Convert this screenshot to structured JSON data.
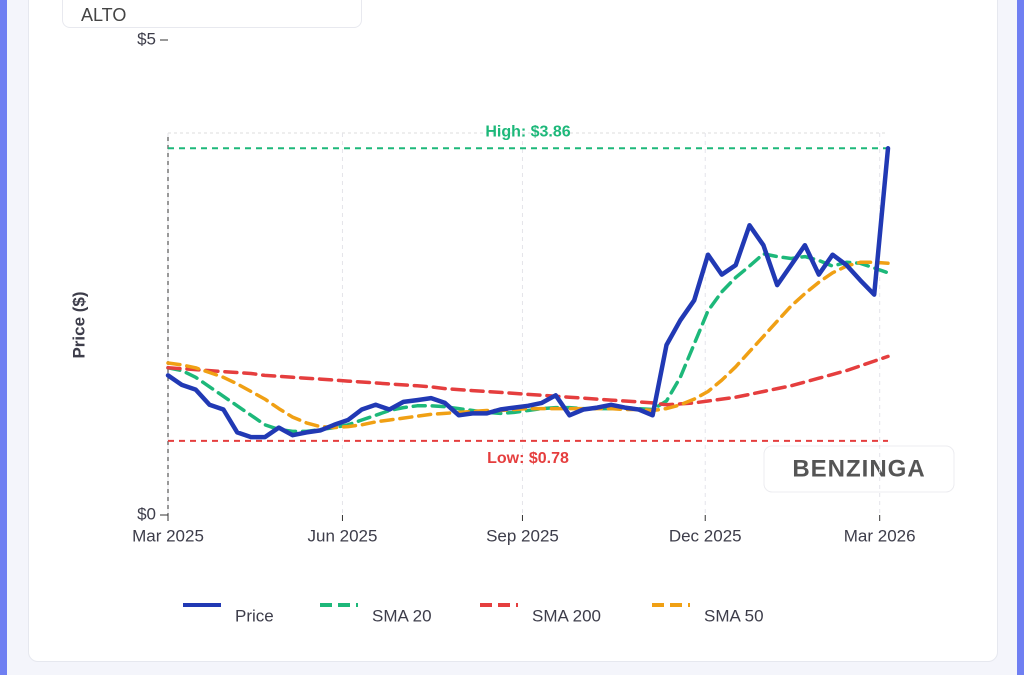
{
  "header": {
    "ticker": "ALTO"
  },
  "chart_data": {
    "type": "line",
    "y_label": "Price ($)",
    "watermark": "BENZINGA",
    "xlim": [
      0,
      52
    ],
    "xticks": [
      {
        "value": 0,
        "label": "Mar 2025"
      },
      {
        "value": 12.6,
        "label": "Jun 2025"
      },
      {
        "value": 25.6,
        "label": "Sep 2025"
      },
      {
        "value": 38.8,
        "label": "Dec 2025"
      },
      {
        "value": 51.4,
        "label": "Mar 2026"
      }
    ],
    "ylim": [
      0,
      5
    ],
    "yticks": [
      {
        "value": 0,
        "label": "$0"
      },
      {
        "value": 5,
        "label": "$5"
      }
    ],
    "grid": true,
    "legend": "bottom",
    "annotations": [
      {
        "label": "High: $3.86",
        "value": 3.86,
        "color": "#1db87a"
      },
      {
        "label": "Low: $0.78",
        "value": 0.78,
        "color": "#e53e3e"
      }
    ],
    "series": [
      {
        "name": "Price",
        "color": "#2139b4",
        "dashed": false,
        "values": [
          1.47,
          1.37,
          1.32,
          1.16,
          1.11,
          0.87,
          0.82,
          0.82,
          0.92,
          0.84,
          0.87,
          0.89,
          0.95,
          1.0,
          1.11,
          1.16,
          1.11,
          1.19,
          1.21,
          1.23,
          1.18,
          1.05,
          1.07,
          1.07,
          1.11,
          1.13,
          1.15,
          1.18,
          1.26,
          1.05,
          1.11,
          1.13,
          1.16,
          1.13,
          1.11,
          1.05,
          1.79,
          2.05,
          2.26,
          2.74,
          2.53,
          2.63,
          3.05,
          2.84,
          2.42,
          2.63,
          2.84,
          2.53,
          2.74,
          2.63,
          2.47,
          2.32,
          3.86
        ]
      },
      {
        "name": "SMA 20",
        "color": "#1db87a",
        "dashed": true,
        "values": [
          1.55,
          1.52,
          1.45,
          1.35,
          1.25,
          1.15,
          1.05,
          0.95,
          0.9,
          0.88,
          0.88,
          0.9,
          0.92,
          0.95,
          1.0,
          1.05,
          1.1,
          1.13,
          1.15,
          1.15,
          1.14,
          1.12,
          1.1,
          1.08,
          1.07,
          1.08,
          1.1,
          1.12,
          1.13,
          1.13,
          1.12,
          1.12,
          1.12,
          1.13,
          1.12,
          1.11,
          1.2,
          1.45,
          1.8,
          2.15,
          2.35,
          2.5,
          2.62,
          2.75,
          2.72,
          2.7,
          2.72,
          2.68,
          2.62,
          2.66,
          2.65,
          2.6,
          2.55
        ]
      },
      {
        "name": "SMA 200",
        "color": "#e53e3e",
        "dashed": true,
        "values": [
          1.55,
          1.54,
          1.53,
          1.52,
          1.51,
          1.5,
          1.49,
          1.47,
          1.46,
          1.45,
          1.44,
          1.43,
          1.42,
          1.41,
          1.4,
          1.39,
          1.38,
          1.37,
          1.36,
          1.35,
          1.33,
          1.32,
          1.31,
          1.3,
          1.29,
          1.28,
          1.27,
          1.26,
          1.25,
          1.24,
          1.23,
          1.22,
          1.21,
          1.2,
          1.19,
          1.18,
          1.16,
          1.17,
          1.18,
          1.2,
          1.22,
          1.24,
          1.27,
          1.3,
          1.33,
          1.36,
          1.4,
          1.44,
          1.48,
          1.52,
          1.57,
          1.62,
          1.67
        ]
      },
      {
        "name": "SMA 50",
        "color": "#f0a014",
        "dashed": true,
        "values": [
          1.6,
          1.58,
          1.55,
          1.5,
          1.45,
          1.38,
          1.3,
          1.22,
          1.12,
          1.03,
          0.97,
          0.93,
          0.92,
          0.93,
          0.95,
          0.98,
          1.0,
          1.02,
          1.04,
          1.06,
          1.07,
          1.08,
          1.09,
          1.1,
          1.1,
          1.11,
          1.12,
          1.12,
          1.12,
          1.12,
          1.12,
          1.12,
          1.12,
          1.11,
          1.11,
          1.1,
          1.12,
          1.16,
          1.22,
          1.3,
          1.42,
          1.56,
          1.72,
          1.88,
          2.04,
          2.2,
          2.33,
          2.45,
          2.55,
          2.62,
          2.66,
          2.66,
          2.65
        ]
      }
    ]
  }
}
